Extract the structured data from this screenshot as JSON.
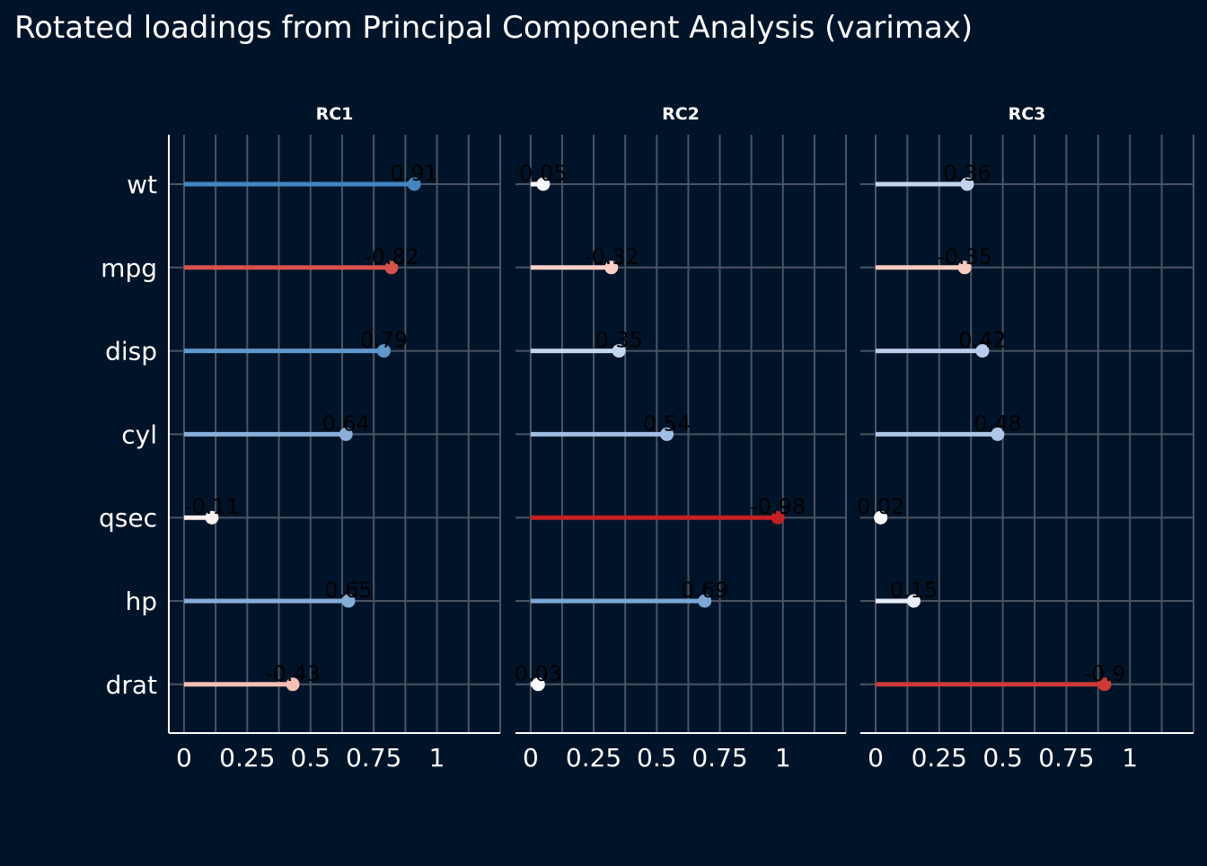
{
  "chart_data": {
    "type": "lollipop",
    "title": "Rotated loadings from Principal Component Analysis (varimax)",
    "xlabel": "",
    "ylabel": "",
    "variables": [
      "wt",
      "mpg",
      "disp",
      "cyl",
      "qsec",
      "hp",
      "drat"
    ],
    "x_ticks": [
      0,
      0.25,
      0.5,
      0.75,
      1
    ],
    "x_tick_labels": [
      "0",
      "0.25",
      "0.5",
      "0.75",
      "1"
    ],
    "xlim": [
      -0.06,
      1.25
    ],
    "grid": true,
    "legend": "none",
    "colors": {
      "background": "#001429",
      "grid": "#4a5563",
      "text": "#ffffff",
      "label": "#000000"
    },
    "panels": [
      {
        "name": "RC1",
        "loadings": [
          0.91,
          -0.82,
          0.79,
          0.64,
          -0.11,
          0.65,
          -0.43
        ],
        "labels": [
          "0.91",
          "-0.82",
          "0.79",
          "0.64",
          "-0.11",
          "0.65",
          "-0.43"
        ]
      },
      {
        "name": "RC2",
        "loadings": [
          0.05,
          -0.32,
          0.35,
          0.54,
          -0.98,
          0.69,
          0.03
        ],
        "labels": [
          "0.05",
          "-0.32",
          "0.35",
          "0.54",
          "-0.98",
          "0.69",
          "0.03"
        ]
      },
      {
        "name": "RC3",
        "loadings": [
          0.36,
          -0.35,
          0.42,
          0.48,
          0.02,
          0.15,
          -0.9
        ],
        "labels": [
          "0.36",
          "-0.35",
          "0.42",
          "0.48",
          "0.02",
          "0.15",
          "-0.9"
        ]
      }
    ]
  }
}
